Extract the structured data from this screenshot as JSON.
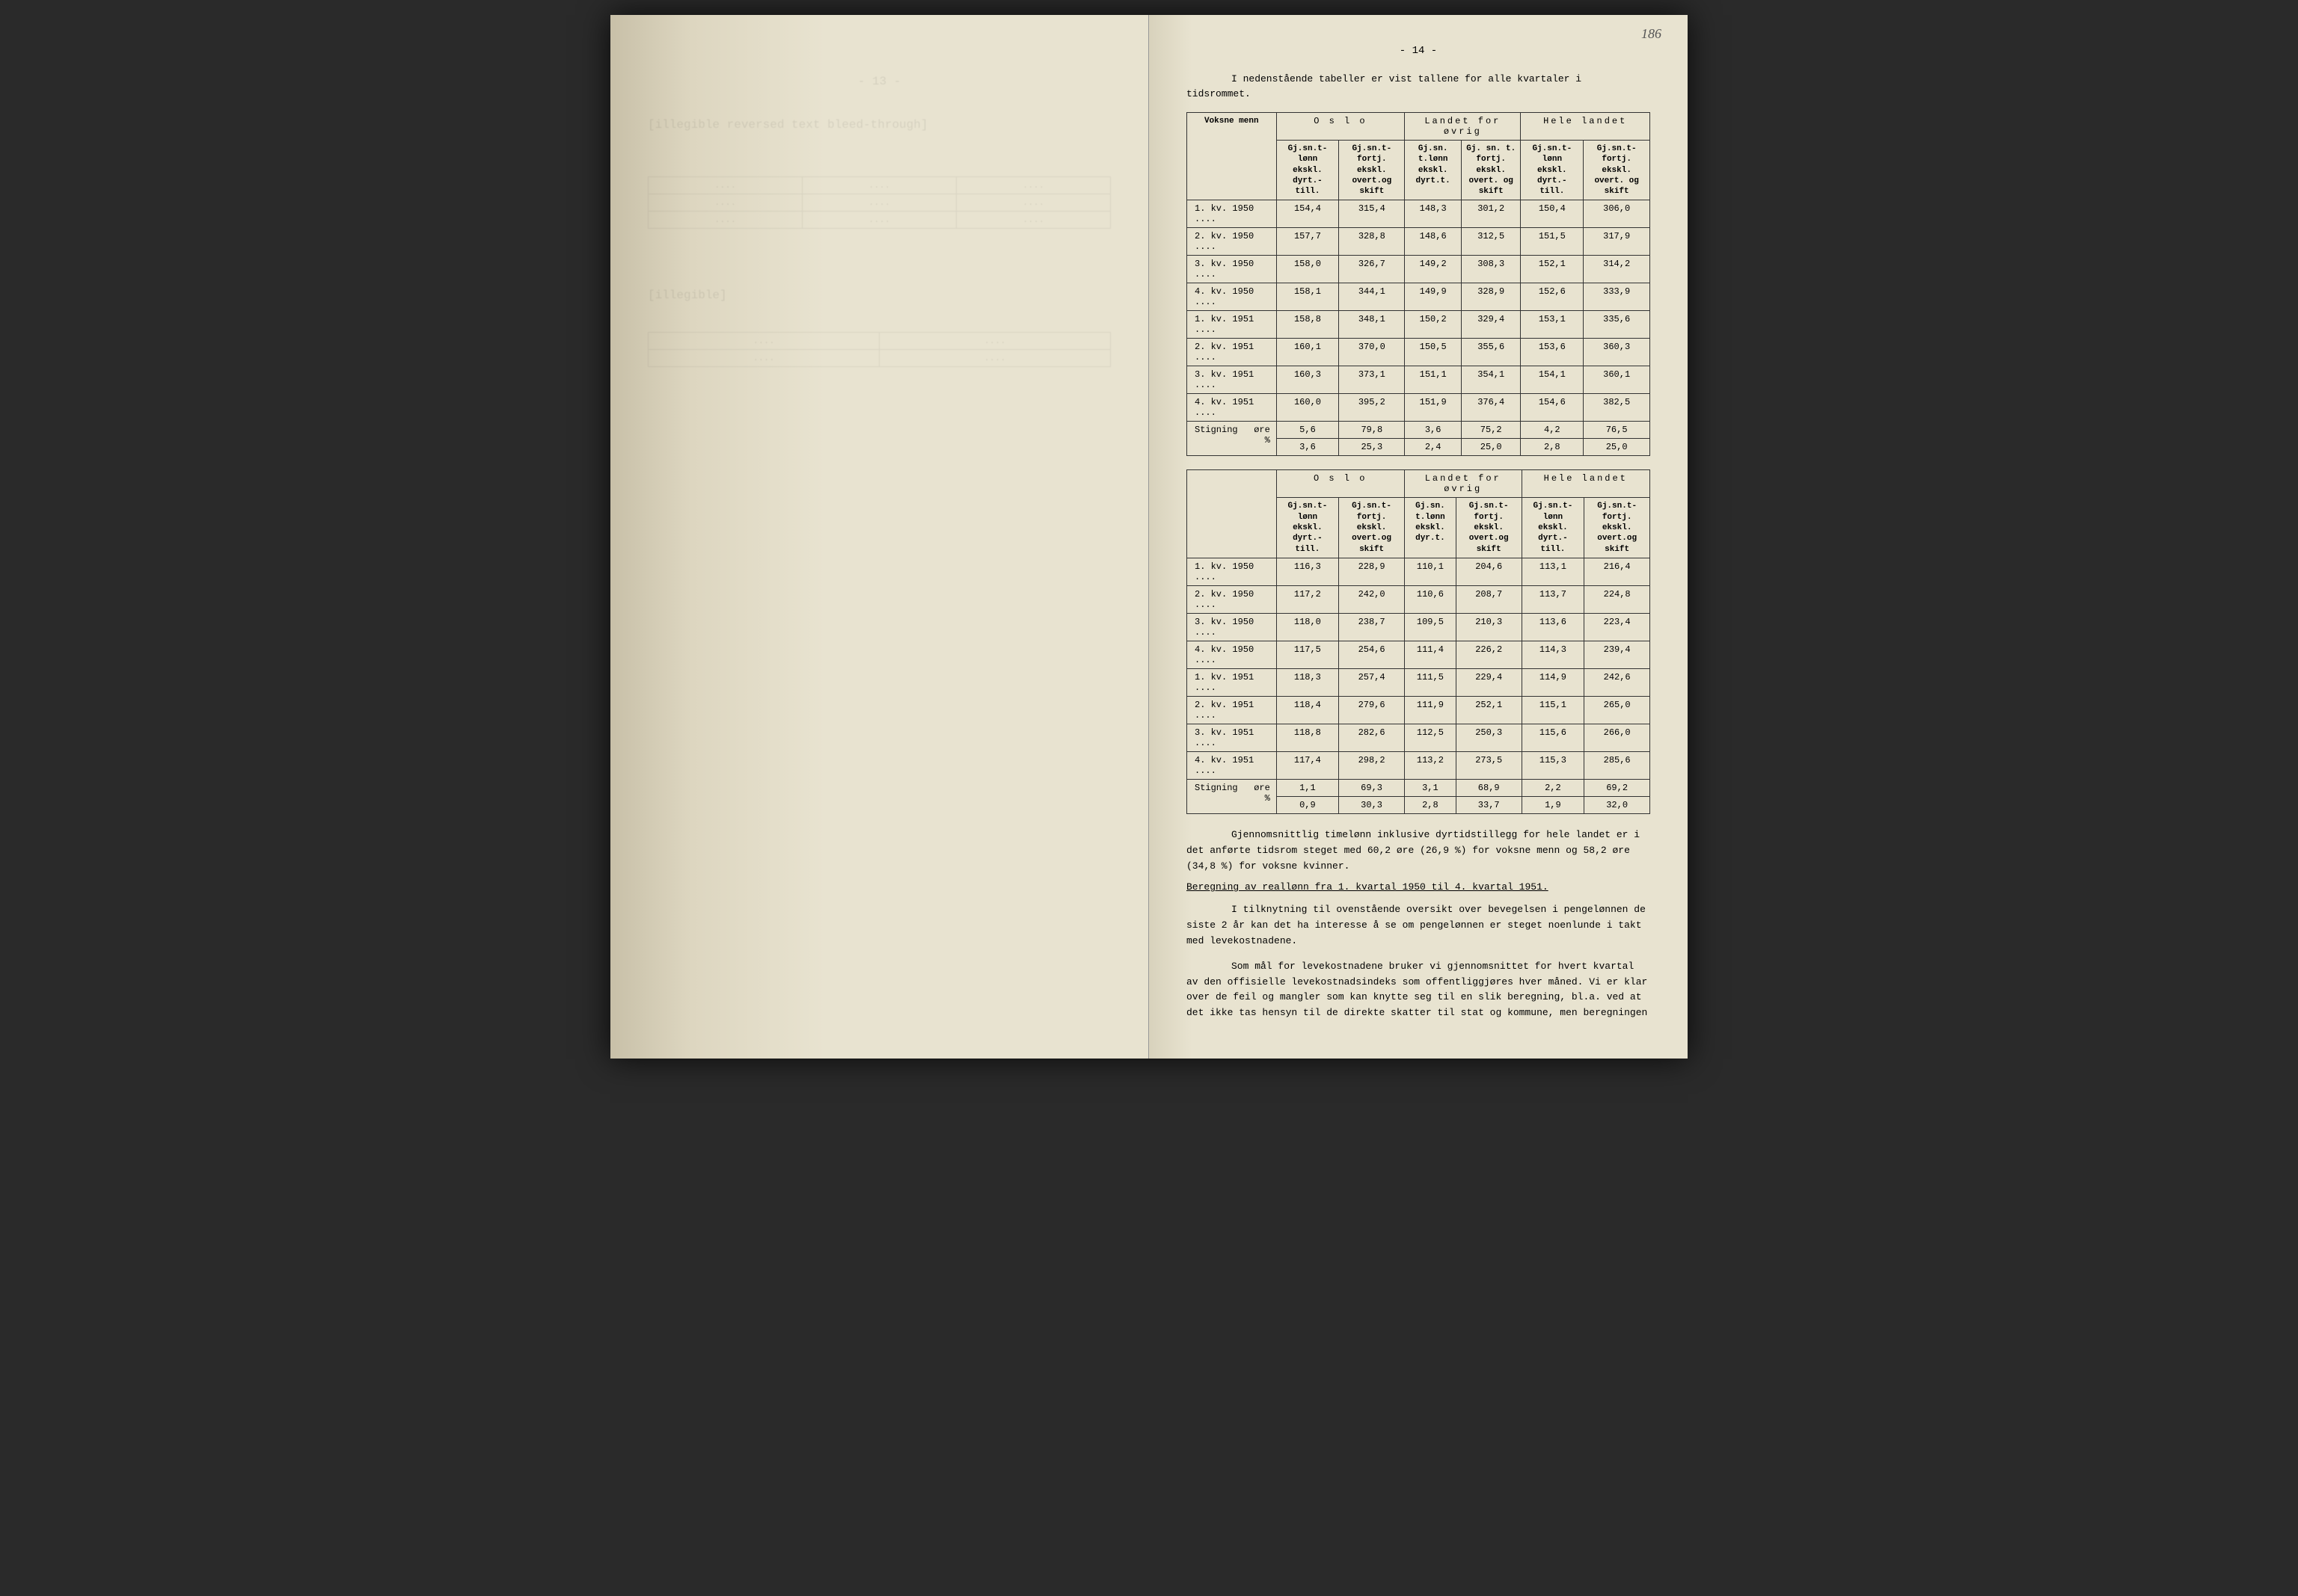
{
  "handwritten_number": "186",
  "page_number": "- 14 -",
  "intro_text": "I nedenstående tabeller er vist tallene for alle kvartaler i tidsrommet.",
  "col_groups": [
    "O s l o",
    "Landet for øvrig",
    "Hele landet"
  ],
  "sub_headers": {
    "voksne": "Voksne menn",
    "c1": "Gj.sn.t-lønn ekskl. dyrt.-till.",
    "c2": "Gj.sn.t-fortj. ekskl. overt.og skift",
    "c3": "Gj.sn. t.lønn ekskl. dyrt.t.",
    "c4": "Gj. sn. t. fortj. ekskl. overt. og skift",
    "c5": "Gj.sn.t-lønn ekskl. dyrt.-till.",
    "c6": "Gj.sn.t-fortj. ekskl. overt. og skift"
  },
  "table1_rows": [
    {
      "label": "1. kv. 1950 ....",
      "v": [
        "154,4",
        "315,4",
        "148,3",
        "301,2",
        "150,4",
        "306,0"
      ]
    },
    {
      "label": "2. kv. 1950 ....",
      "v": [
        "157,7",
        "328,8",
        "148,6",
        "312,5",
        "151,5",
        "317,9"
      ]
    },
    {
      "label": "3. kv. 1950 ....",
      "v": [
        "158,0",
        "326,7",
        "149,2",
        "308,3",
        "152,1",
        "314,2"
      ]
    },
    {
      "label": "4. kv. 1950 ....",
      "v": [
        "158,1",
        "344,1",
        "149,9",
        "328,9",
        "152,6",
        "333,9"
      ]
    },
    {
      "label": "1. kv. 1951 ....",
      "v": [
        "158,8",
        "348,1",
        "150,2",
        "329,4",
        "153,1",
        "335,6"
      ]
    },
    {
      "label": "2. kv. 1951 ....",
      "v": [
        "160,1",
        "370,0",
        "150,5",
        "355,6",
        "153,6",
        "360,3"
      ]
    },
    {
      "label": "3. kv. 1951 ....",
      "v": [
        "160,3",
        "373,1",
        "151,1",
        "354,1",
        "154,1",
        "360,1"
      ]
    },
    {
      "label": "4. kv. 1951 ....",
      "v": [
        "160,0",
        "395,2",
        "151,9",
        "376,4",
        "154,6",
        "382,5"
      ]
    }
  ],
  "table1_stigning": {
    "label": "Stigning",
    "unit1": "øre",
    "unit2": "%",
    "row1": [
      "5,6",
      "79,8",
      "3,6",
      "75,2",
      "4,2",
      "76,5"
    ],
    "row2": [
      "3,6",
      "25,3",
      "2,4",
      "25,0",
      "2,8",
      "25,0"
    ]
  },
  "sub_headers2": {
    "c1": "Gj.sn.t-lønn ekskl. dyrt.-till.",
    "c2": "Gj.sn.t-fortj. ekskl. overt.og skift",
    "c3": "Gj.sn. t.lønn ekskl. dyr.t.",
    "c4": "Gj.sn.t-fortj. ekskl. overt.og skift",
    "c5": "Gj.sn.t-lønn ekskl. dyrt.-till.",
    "c6": "Gj.sn.t-fortj. ekskl. overt.og skift"
  },
  "table2_rows": [
    {
      "label": "1. kv. 1950 ....",
      "v": [
        "116,3",
        "228,9",
        "110,1",
        "204,6",
        "113,1",
        "216,4"
      ]
    },
    {
      "label": "2. kv. 1950 ....",
      "v": [
        "117,2",
        "242,0",
        "110,6",
        "208,7",
        "113,7",
        "224,8"
      ]
    },
    {
      "label": "3. kv. 1950 ....",
      "v": [
        "118,0",
        "238,7",
        "109,5",
        "210,3",
        "113,6",
        "223,4"
      ]
    },
    {
      "label": "4. kv. 1950 ....",
      "v": [
        "117,5",
        "254,6",
        "111,4",
        "226,2",
        "114,3",
        "239,4"
      ]
    },
    {
      "label": "1. kv. 1951 ....",
      "v": [
        "118,3",
        "257,4",
        "111,5",
        "229,4",
        "114,9",
        "242,6"
      ]
    },
    {
      "label": "2. kv. 1951 ....",
      "v": [
        "118,4",
        "279,6",
        "111,9",
        "252,1",
        "115,1",
        "265,0"
      ]
    },
    {
      "label": "3. kv. 1951 ....",
      "v": [
        "118,8",
        "282,6",
        "112,5",
        "250,3",
        "115,6",
        "266,0"
      ]
    },
    {
      "label": "4. kv. 1951 ....",
      "v": [
        "117,4",
        "298,2",
        "113,2",
        "273,5",
        "115,3",
        "285,6"
      ]
    }
  ],
  "table2_stigning": {
    "label": "Stigning",
    "unit1": "øre",
    "unit2": "%",
    "row1": [
      "1,1",
      "69,3",
      "3,1",
      "68,9",
      "2,2",
      "69,2"
    ],
    "row2": [
      "0,9",
      "30,3",
      "2,8",
      "33,7",
      "1,9",
      "32,0"
    ]
  },
  "summary_para": "Gjennomsnittlig timelønn inklusive dyrtidstillegg for hele landet er i det anførte tidsrom steget med 60,2 øre (26,9 %) for voksne menn og 58,2 øre (34,8 %) for voksne kvinner.",
  "section_heading": "Beregning av reallønn fra 1. kvartal 1950 til 4. kvartal 1951.",
  "para1": "I tilknytning til ovenstående oversikt over bevegelsen i pengelønnen de siste 2 år kan det ha interesse å se om pengelønnen er steget noenlunde i takt med levekostnadene.",
  "para2": "Som mål for levekostnadene bruker vi gjennomsnittet for hvert kvartal av den offisielle levekostnadsindeks som offentliggjøres hver måned. Vi er klar over de feil og mangler som kan knytte seg til en slik beregning, bl.a. ved at det ikke tas hensyn til de direkte skatter til stat og kommune, men beregningen"
}
